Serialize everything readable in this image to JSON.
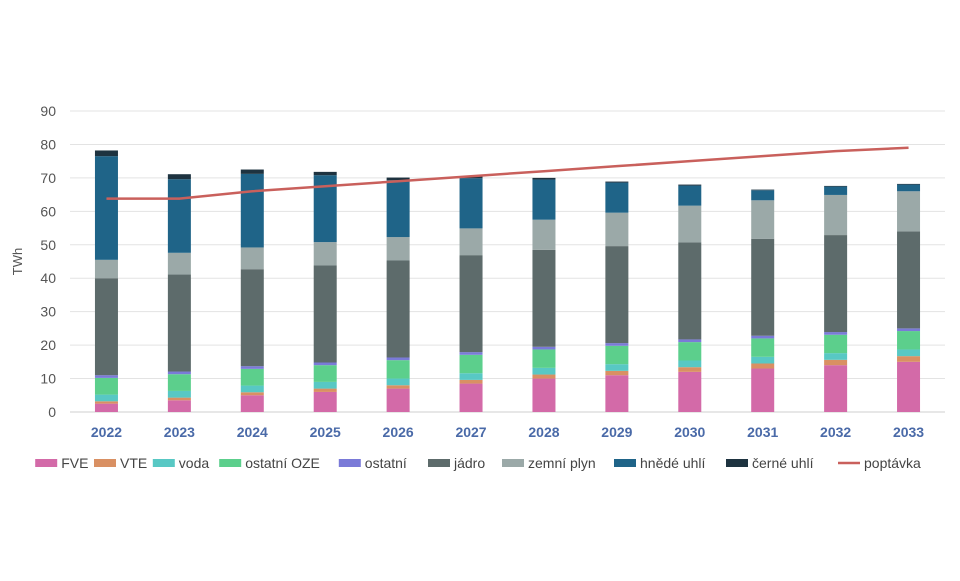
{
  "chart_data": {
    "type": "bar",
    "stacked": true,
    "categories": [
      "2022",
      "2023",
      "2024",
      "2025",
      "2026",
      "2027",
      "2028",
      "2029",
      "2030",
      "2031",
      "2032",
      "2033"
    ],
    "ylabel": "TWh",
    "xlabel": "",
    "ylim": [
      0,
      90
    ],
    "yticks": [
      0,
      10,
      20,
      30,
      40,
      50,
      60,
      70,
      80,
      90
    ],
    "grid": true,
    "legend_position": "bottom",
    "series": [
      {
        "name": "FVE",
        "color": "#d36aa8",
        "values": [
          2.5,
          3.5,
          5,
          6,
          7,
          8.5,
          10,
          11,
          12,
          13,
          14,
          15
        ]
      },
      {
        "name": "VTE",
        "color": "#d99063",
        "values": [
          0.7,
          0.8,
          0.9,
          1,
          1,
          1.1,
          1.2,
          1.3,
          1.4,
          1.5,
          1.6,
          1.7
        ]
      },
      {
        "name": "voda",
        "color": "#58c8c4",
        "values": [
          2,
          2,
          2,
          2,
          2,
          2,
          2,
          2,
          2,
          2,
          2,
          2
        ]
      },
      {
        "name": "ostatní OZE",
        "color": "#5ccf8c",
        "values": [
          5,
          5,
          5,
          5,
          5.5,
          5.5,
          5.5,
          5.5,
          5.5,
          5.5,
          5.5,
          5.5
        ]
      },
      {
        "name": "ostatní",
        "color": "#7a7ad8",
        "values": [
          0.8,
          0.8,
          0.8,
          0.8,
          0.8,
          0.8,
          0.8,
          0.8,
          0.8,
          0.8,
          0.8,
          0.8
        ]
      },
      {
        "name": "jádro",
        "color": "#5d6b6b",
        "values": [
          29,
          29,
          29,
          29,
          29,
          29,
          29,
          29,
          29,
          29,
          29,
          29
        ]
      },
      {
        "name": "zemní plyn",
        "color": "#9ba9a8",
        "values": [
          5.5,
          6.5,
          6.5,
          7,
          7,
          8,
          9,
          10,
          11,
          11.5,
          12,
          12
        ]
      },
      {
        "name": "hnědé uhlí",
        "color": "#1f6488",
        "values": [
          31,
          22,
          22,
          20,
          17,
          15,
          12,
          9,
          6,
          3,
          2.5,
          2
        ]
      },
      {
        "name": "černé uhlí",
        "color": "#1e3340",
        "values": [
          1.7,
          1.5,
          1.3,
          1,
          0.8,
          0.6,
          0.5,
          0.3,
          0.3,
          0.2,
          0.2,
          0.2
        ]
      }
    ],
    "line_series": {
      "name": "poptávka",
      "color": "#c9605c",
      "values": [
        63.8,
        63.8,
        66,
        67.5,
        69,
        70.5,
        72,
        73.5,
        75,
        76.5,
        78,
        79
      ]
    }
  }
}
